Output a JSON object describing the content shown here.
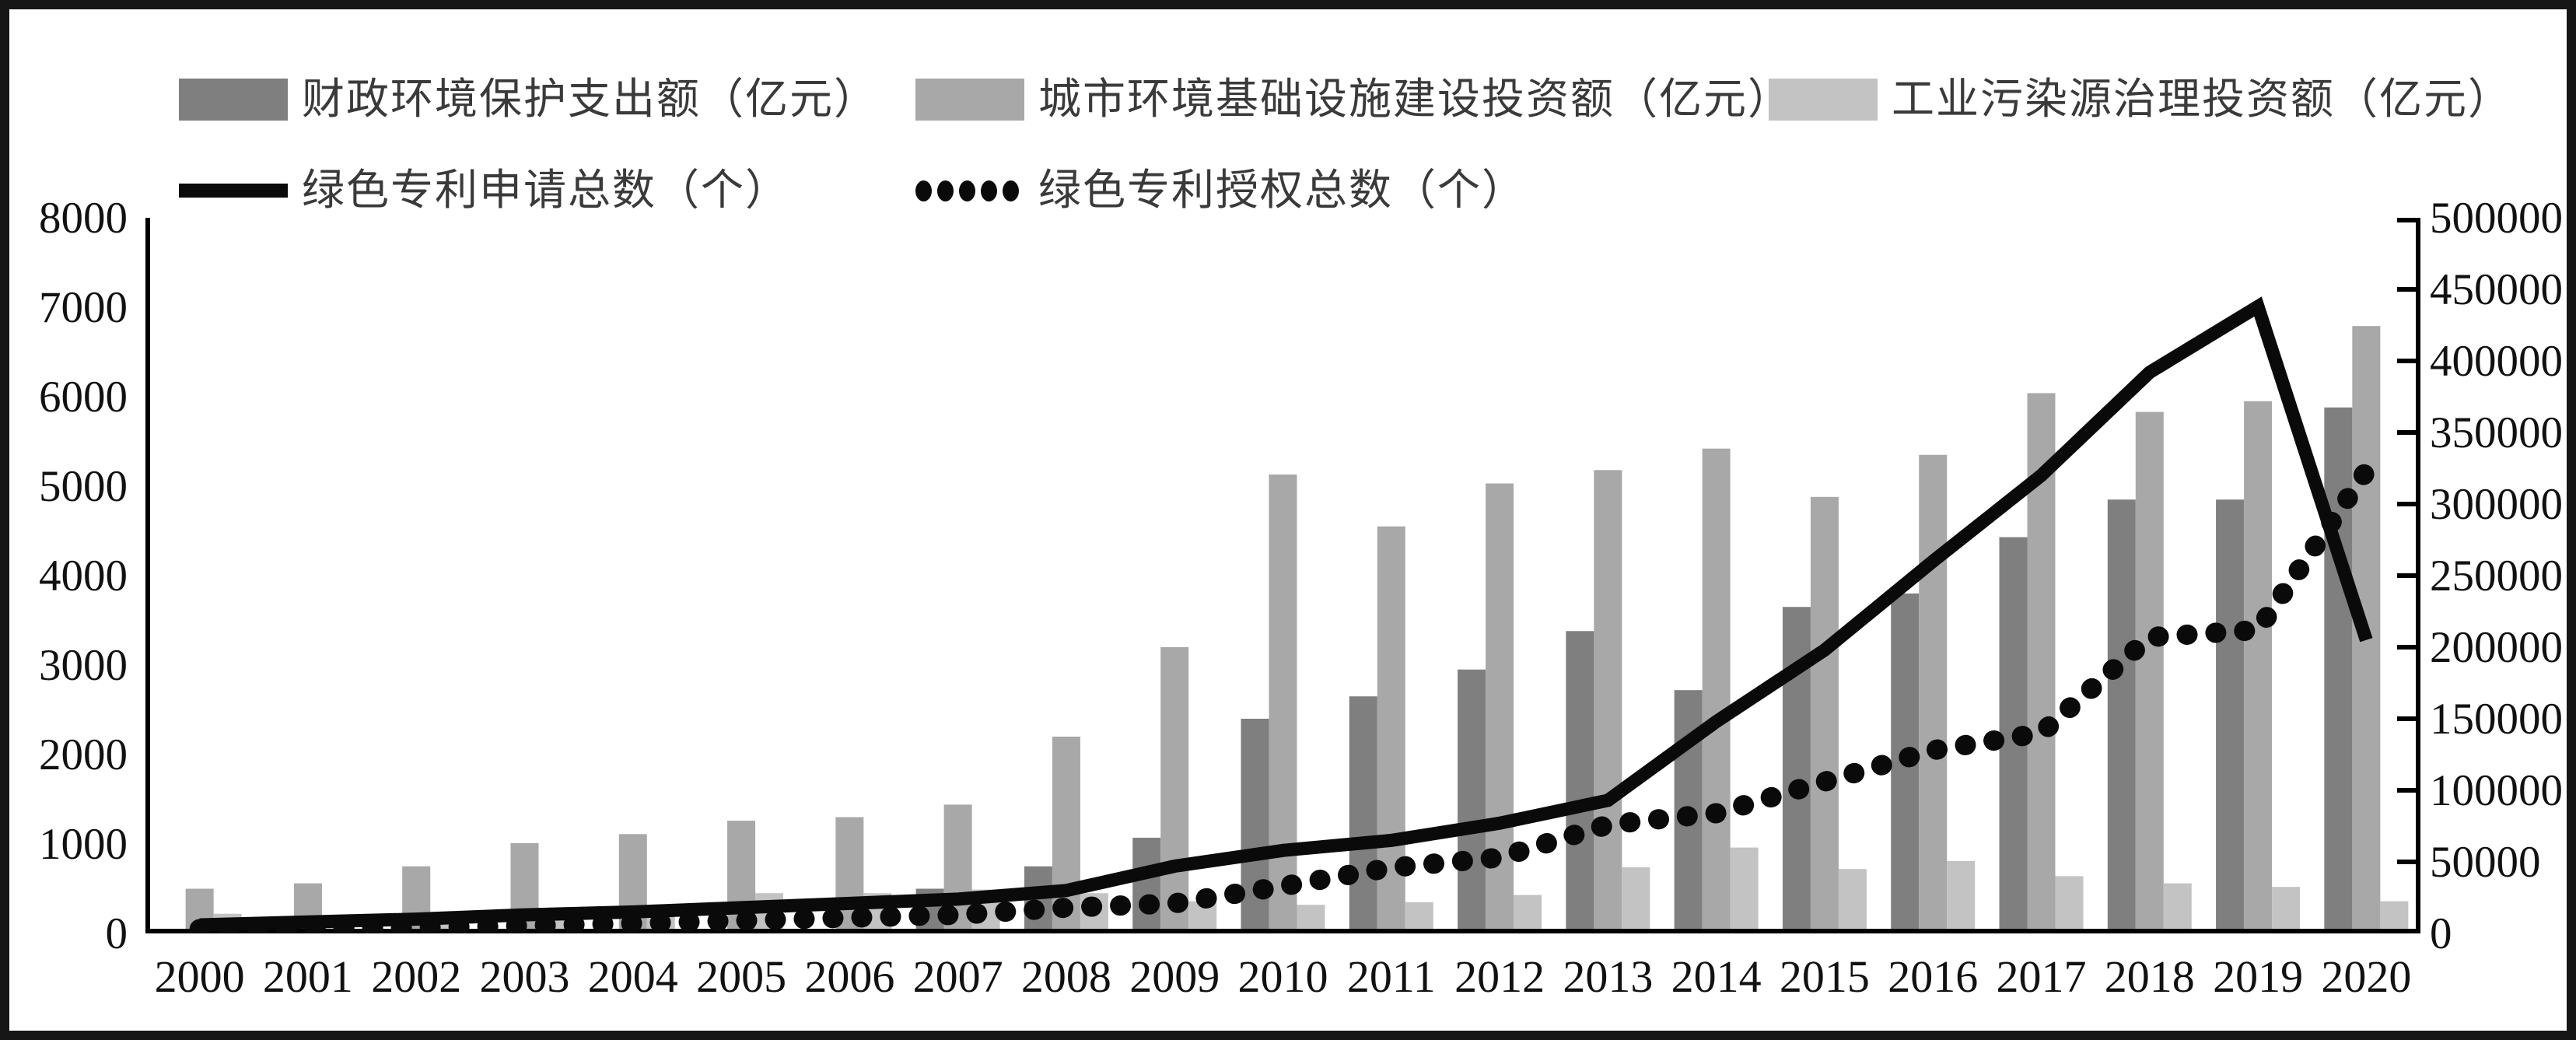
{
  "accent_colors": {
    "bar_dark": "#7f7f7f",
    "bar_medium": "#a8a8a8",
    "bar_light": "#c3c3c3",
    "line_black": "#0a0a0a",
    "frame": "#161616"
  },
  "legend": {
    "items": [
      {
        "label": "财政环境保护支出额（亿元）",
        "swatch": "bar-dark"
      },
      {
        "label": "城市环境基础设施建设投资额（亿元）",
        "swatch": "bar-medium"
      },
      {
        "label": "工业污染源治理投资额（亿元）",
        "swatch": "bar-light"
      },
      {
        "label": "绿色专利申请总数（个）",
        "swatch": "solid-line"
      },
      {
        "label": "绿色专利授权总数（个）",
        "swatch": "dotted-line"
      }
    ]
  },
  "chart_data": {
    "type": "bar",
    "subtype": "grouped-bars-with-two-lines",
    "categories": [
      "2000",
      "2001",
      "2002",
      "2003",
      "2004",
      "2005",
      "2006",
      "2007",
      "2008",
      "2009",
      "2010",
      "2011",
      "2012",
      "2013",
      "2014",
      "2015",
      "2016",
      "2017",
      "2018",
      "2019",
      "2020"
    ],
    "series": [
      {
        "name": "财政环境保护支出额（亿元）",
        "type": "bar",
        "axis": "left",
        "color": "#7f7f7f",
        "values": [
          null,
          null,
          null,
          null,
          null,
          null,
          null,
          500,
          750,
          1070,
          2400,
          2650,
          2950,
          3380,
          2720,
          3650,
          3800,
          4430,
          4850,
          4850,
          5880
        ]
      },
      {
        "name": "城市环境基础设施建设投资额（亿元）",
        "type": "bar",
        "axis": "left",
        "color": "#a8a8a8",
        "values": [
          500,
          560,
          750,
          1010,
          1110,
          1260,
          1300,
          1440,
          2200,
          3200,
          5130,
          4550,
          5030,
          5180,
          5420,
          4880,
          5350,
          6040,
          5830,
          5950,
          6790
        ]
      },
      {
        "name": "工业污染源治理投资额（亿元）",
        "type": "bar",
        "axis": "left",
        "color": "#c3c3c3",
        "values": [
          220,
          130,
          160,
          200,
          290,
          450,
          450,
          490,
          450,
          360,
          320,
          350,
          430,
          740,
          960,
          720,
          810,
          640,
          560,
          520,
          360
        ]
      },
      {
        "name": "绿色专利申请总数（个）",
        "type": "line",
        "style": "solid",
        "axis": "right",
        "color": "#0a0a0a",
        "values": [
          6000,
          8000,
          10000,
          13000,
          15000,
          18000,
          21000,
          24000,
          30000,
          47000,
          58000,
          65000,
          77000,
          93000,
          148000,
          198000,
          260000,
          320000,
          392000,
          438000,
          205000
        ]
      },
      {
        "name": "绿色专利授权总数（个）",
        "type": "line",
        "style": "dotted",
        "axis": "right",
        "color": "#0a0a0a",
        "values": [
          3000,
          3500,
          4000,
          5500,
          7000,
          9000,
          11000,
          13000,
          18000,
          21000,
          33000,
          46000,
          53000,
          76000,
          84000,
          106000,
          128000,
          140000,
          207000,
          212000,
          323000
        ]
      }
    ],
    "left_axis": {
      "min": 0,
      "max": 8000,
      "step": 1000,
      "tick_labels": [
        "0",
        "1000",
        "2000",
        "3000",
        "4000",
        "5000",
        "6000",
        "7000",
        "8000"
      ]
    },
    "right_axis": {
      "min": 0,
      "max": 500000,
      "step": 50000,
      "tick_labels": [
        "0",
        "50000",
        "100000",
        "150000",
        "200000",
        "250000",
        "300000",
        "350000",
        "400000",
        "450000",
        "500000"
      ]
    },
    "grid": false,
    "legend_position": "top",
    "title": "",
    "xlabel": "",
    "ylabel_left": "",
    "ylabel_right": ""
  }
}
